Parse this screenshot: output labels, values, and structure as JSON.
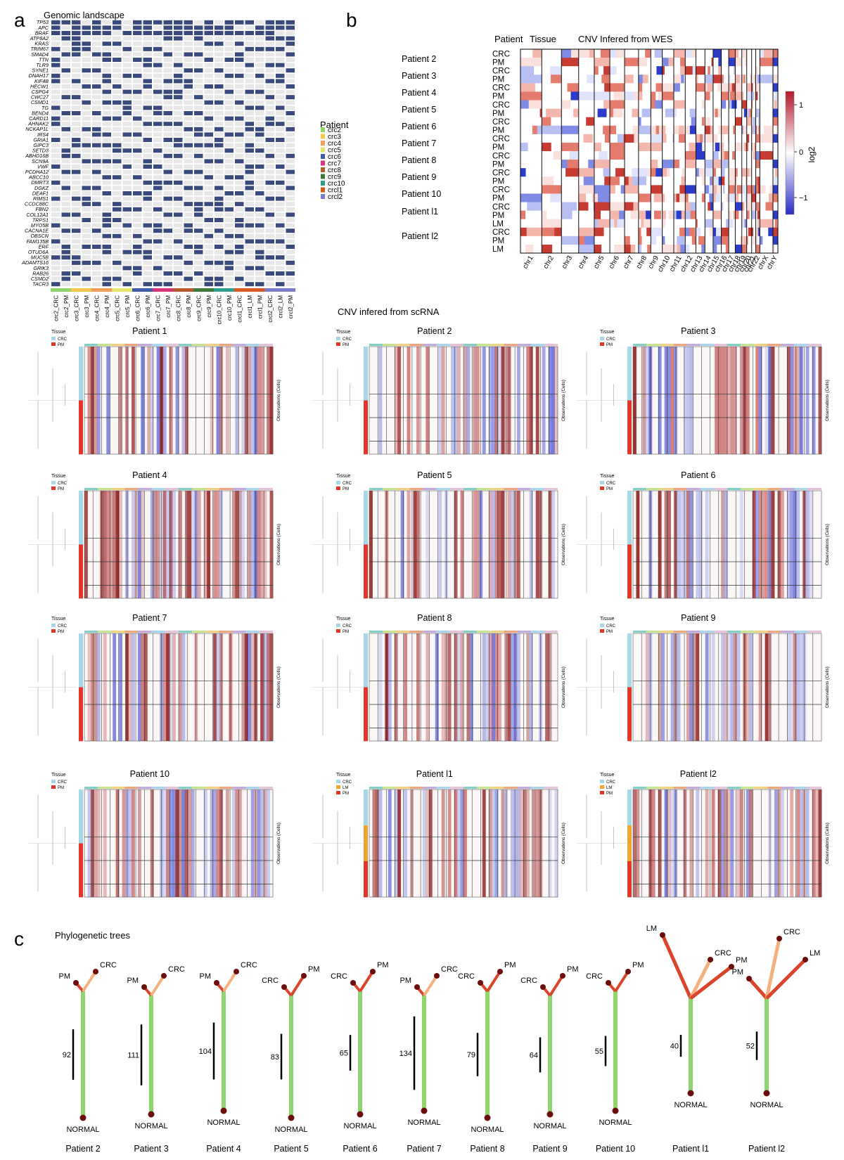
{
  "panel_a": {
    "letter": "a",
    "title": "Genomic landscape",
    "genes": [
      "TP53",
      "APC",
      "BRAF",
      "ATP8A2",
      "KRAS",
      "TRIM67",
      "SMAD4",
      "TTN",
      "TLR9",
      "SYNE1",
      "DNAH17",
      "KIF4B",
      "HECW1",
      "CSPG4",
      "CWC27",
      "CSMD1",
      "TG",
      "BEND4",
      "CARD11",
      "AHNAK2",
      "NCKAP1L",
      "IRS4",
      "GRIA1",
      "GIPC3",
      "SETD3",
      "ABHD16B",
      "SCN9A",
      "VWF",
      "PCDHA12",
      "ABCC10",
      "DMRT3",
      "DGKZ",
      "DEAF1",
      "RIMS1",
      "CCDC88C",
      "FBN2",
      "COL12A1",
      "TRPS1",
      "MYO5B",
      "CACNA1E",
      "OBSCN",
      "FAM135B",
      "ERF",
      "OTUD6A",
      "MUC5B",
      "ADAMTS16",
      "GRIK3",
      "RAB26",
      "CSMD2",
      "TACR3"
    ],
    "samples": [
      "crc2_CRC",
      "crc2_PM",
      "crc3_CRC",
      "crc3_PM",
      "crc4_CRC",
      "crc4_PM",
      "crc5_CRC",
      "crc5_PM",
      "crc6_CRC",
      "crc6_PM",
      "crc7_CRC",
      "crc7_PM",
      "crc8_CRC",
      "crc8_PM",
      "crc9_CRC",
      "crc9_PM",
      "crc10_CRC",
      "crc10_PM",
      "crcl1_CRC",
      "crcl1_LM",
      "crcl1_PM",
      "crcl2_CRC",
      "crcl2_LM",
      "crcl2_PM"
    ],
    "legend_title": "Patient",
    "legend": [
      {
        "label": "crc2",
        "color": "#8dd46b"
      },
      {
        "label": "crc3",
        "color": "#f2c94c"
      },
      {
        "label": "crc4",
        "color": "#f5a05a"
      },
      {
        "label": "crc5",
        "color": "#e8e36a"
      },
      {
        "label": "crc6",
        "color": "#3f5ba9"
      },
      {
        "label": "crc7",
        "color": "#d6337a"
      },
      {
        "label": "crc8",
        "color": "#b55a2a"
      },
      {
        "label": "crc9",
        "color": "#3d7a3a"
      },
      {
        "label": "crc10",
        "color": "#2f9e8f"
      },
      {
        "label": "crcl1",
        "color": "#d6591f"
      },
      {
        "label": "crcl2",
        "color": "#7b7bc8"
      }
    ],
    "mutated_color": "#3a4a7d",
    "wt_color": "#e8e8e8"
  },
  "panel_b": {
    "letter": "b",
    "header_patient": "Patient",
    "header_tissue": "Tissue",
    "title": "CNV Infered from WES",
    "patients": [
      "Patient 2",
      "Patient 3",
      "Patient 4",
      "Patient 5",
      "Patient 6",
      "Patient 7",
      "Patient 8",
      "Patient 9",
      "Patient 10",
      "Patient l1",
      "Patient l2"
    ],
    "tissues": [
      "CRC",
      "PM",
      "CRC",
      "PM",
      "CRC",
      "PM",
      "CRC",
      "PM",
      "CRC",
      "PM",
      "CRC",
      "PM",
      "CRC",
      "PM",
      "CRC",
      "PM",
      "CRC",
      "PM",
      "CRC",
      "PM",
      "LM",
      "CRC",
      "PM",
      "LM"
    ],
    "chromosomes": [
      "chr1",
      "chr2",
      "chr3",
      "chr4",
      "chr5",
      "chr6",
      "chr7",
      "chr8",
      "chr9",
      "chr10",
      "chr11",
      "chr12",
      "chr13",
      "chr14",
      "chr15",
      "chr16",
      "chr17",
      "chr18",
      "chr19",
      "chr20",
      "chr21",
      "chr22",
      "chrX",
      "chrY"
    ],
    "colorbar": {
      "label": "log2",
      "ticks": [
        "1",
        "0",
        "−1"
      ],
      "high": "#b2182b",
      "low": "#2c2cc4"
    }
  },
  "panel_sc": {
    "title": "CNV infered from scRNA",
    "legend_title": "Tissue",
    "ylabel": "Observations (Cells)",
    "tissue_colors": {
      "CRC": "#a6d9e8",
      "PM": "#e53528",
      "LM": "#f2a42b"
    },
    "patients": [
      {
        "name": "Patient 1",
        "tissues": [
          "CRC",
          "PM"
        ]
      },
      {
        "name": "Patient 2",
        "tissues": [
          "CRC",
          "PM"
        ]
      },
      {
        "name": "Patient 3",
        "tissues": [
          "CRC",
          "PM"
        ]
      },
      {
        "name": "Patient 4",
        "tissues": [
          "CRC",
          "PM"
        ]
      },
      {
        "name": "Patient 5",
        "tissues": [
          "CRC",
          "PM"
        ]
      },
      {
        "name": "Patient 6",
        "tissues": [
          "CRC",
          "PM"
        ]
      },
      {
        "name": "Patient 7",
        "tissues": [
          "CRC",
          "PM"
        ]
      },
      {
        "name": "Patient 8",
        "tissues": [
          "CRC",
          "PM"
        ]
      },
      {
        "name": "Patient 9",
        "tissues": [
          "CRC",
          "PM"
        ]
      },
      {
        "name": "Patient 10",
        "tissues": [
          "CRC",
          "PM"
        ]
      },
      {
        "name": "Patient l1",
        "tissues": [
          "CRC",
          "LM",
          "PM"
        ]
      },
      {
        "name": "Patient l2",
        "tissues": [
          "CRC",
          "LM",
          "PM"
        ]
      }
    ]
  },
  "panel_c": {
    "letter": "c",
    "title": "Phylogenetic trees",
    "root_label": "NORMAL",
    "trees": [
      {
        "patient": "Patient 2",
        "trunk": 92,
        "tips": [
          "PM",
          "CRC"
        ]
      },
      {
        "patient": "Patient 3",
        "trunk": 111,
        "tips": [
          "PM",
          "CRC"
        ]
      },
      {
        "patient": "Patient 4",
        "trunk": 104,
        "tips": [
          "PM",
          "CRC"
        ]
      },
      {
        "patient": "Patient 5",
        "trunk": 83,
        "tips": [
          "CRC",
          "PM"
        ]
      },
      {
        "patient": "Patient 6",
        "trunk": 65,
        "tips": [
          "CRC",
          "PM"
        ]
      },
      {
        "patient": "Patient 7",
        "trunk": 134,
        "tips": [
          "PM",
          "CRC"
        ]
      },
      {
        "patient": "Patient 8",
        "trunk": 79,
        "tips": [
          "CRC",
          "PM"
        ]
      },
      {
        "patient": "Patient 9",
        "trunk": 64,
        "tips": [
          "CRC",
          "PM"
        ]
      },
      {
        "patient": "Patient 10",
        "trunk": 55,
        "tips": [
          "CRC",
          "PM"
        ]
      },
      {
        "patient": "Patient l1",
        "trunk": 40,
        "tips": [
          "LM",
          "CRC",
          "PM"
        ]
      },
      {
        "patient": "Patient l2",
        "trunk": 52,
        "tips": [
          "PM",
          "CRC",
          "LM"
        ]
      }
    ]
  }
}
